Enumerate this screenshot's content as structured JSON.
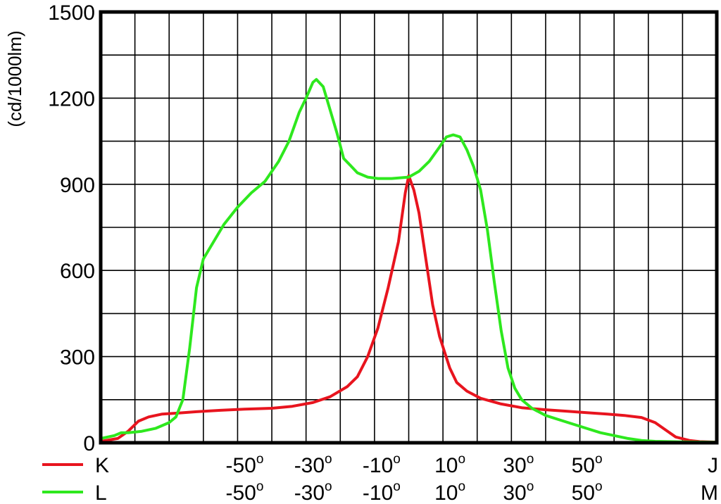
{
  "chart_data": {
    "type": "line",
    "ylabel": "(cd/1000lm)",
    "ylim": [
      0,
      1500
    ],
    "xlim": [
      -90,
      90
    ],
    "yticks": [
      "0",
      "300",
      "600",
      "900",
      "1200",
      "1500"
    ],
    "y_ticks_numeric": [
      0,
      300,
      600,
      900,
      1200,
      1500
    ],
    "grid": true,
    "x_axis_rows": [
      {
        "legend_label": "K",
        "color": "#e8141e",
        "tick_labels": [
          "-50",
          "-30",
          "-10",
          "10",
          "30",
          "50"
        ],
        "end_label": "J"
      },
      {
        "legend_label": "L",
        "color": "#2ee81e",
        "tick_labels": [
          "-50",
          "-30",
          "-10",
          "10",
          "30",
          "50"
        ],
        "end_label": "M"
      }
    ],
    "x_ticks_numeric": [
      -50,
      -30,
      -10,
      10,
      30,
      50
    ],
    "degree_symbol": "o",
    "series": [
      {
        "name": "K",
        "color": "#e8141e",
        "points": [
          [
            -90,
            5
          ],
          [
            -85,
            15
          ],
          [
            -82,
            40
          ],
          [
            -79,
            75
          ],
          [
            -76,
            90
          ],
          [
            -72,
            100
          ],
          [
            -68,
            103
          ],
          [
            -62,
            108
          ],
          [
            -55,
            113
          ],
          [
            -48,
            117
          ],
          [
            -40,
            120
          ],
          [
            -34,
            127
          ],
          [
            -28,
            140
          ],
          [
            -23,
            160
          ],
          [
            -18,
            195
          ],
          [
            -15,
            230
          ],
          [
            -12,
            300
          ],
          [
            -9,
            400
          ],
          [
            -6,
            540
          ],
          [
            -3,
            700
          ],
          [
            -1,
            870
          ],
          [
            0,
            930
          ],
          [
            1.5,
            880
          ],
          [
            3,
            800
          ],
          [
            5,
            640
          ],
          [
            7,
            480
          ],
          [
            9,
            370
          ],
          [
            12,
            260
          ],
          [
            14,
            210
          ],
          [
            17,
            180
          ],
          [
            21,
            155
          ],
          [
            27,
            135
          ],
          [
            33,
            122
          ],
          [
            40,
            115
          ],
          [
            46,
            110
          ],
          [
            52,
            105
          ],
          [
            58,
            100
          ],
          [
            63,
            95
          ],
          [
            68,
            88
          ],
          [
            72,
            70
          ],
          [
            75,
            45
          ],
          [
            78,
            20
          ],
          [
            82,
            8
          ],
          [
            85,
            4
          ],
          [
            90,
            2
          ]
        ]
      },
      {
        "name": "L",
        "color": "#2ee81e",
        "points": [
          [
            -90,
            15
          ],
          [
            -86,
            25
          ],
          [
            -84,
            35
          ],
          [
            -82,
            35
          ],
          [
            -78,
            40
          ],
          [
            -74,
            50
          ],
          [
            -70,
            70
          ],
          [
            -68,
            90
          ],
          [
            -66,
            150
          ],
          [
            -64,
            330
          ],
          [
            -62,
            540
          ],
          [
            -60,
            640
          ],
          [
            -57,
            700
          ],
          [
            -54,
            760
          ],
          [
            -50,
            820
          ],
          [
            -46,
            870
          ],
          [
            -42,
            910
          ],
          [
            -38,
            980
          ],
          [
            -35,
            1050
          ],
          [
            -32,
            1150
          ],
          [
            -30,
            1200
          ],
          [
            -28,
            1255
          ],
          [
            -27,
            1265
          ],
          [
            -25,
            1240
          ],
          [
            -23,
            1160
          ],
          [
            -21,
            1080
          ],
          [
            -19,
            990
          ],
          [
            -17,
            965
          ],
          [
            -15,
            940
          ],
          [
            -12,
            925
          ],
          [
            -9,
            920
          ],
          [
            -5,
            920
          ],
          [
            0,
            925
          ],
          [
            3,
            945
          ],
          [
            6,
            980
          ],
          [
            9,
            1030
          ],
          [
            11,
            1065
          ],
          [
            13,
            1072
          ],
          [
            15,
            1065
          ],
          [
            17,
            1020
          ],
          [
            19,
            960
          ],
          [
            21,
            880
          ],
          [
            23,
            740
          ],
          [
            25,
            560
          ],
          [
            27,
            390
          ],
          [
            29,
            260
          ],
          [
            31,
            190
          ],
          [
            33,
            150
          ],
          [
            36,
            120
          ],
          [
            40,
            95
          ],
          [
            44,
            80
          ],
          [
            48,
            65
          ],
          [
            52,
            50
          ],
          [
            56,
            35
          ],
          [
            60,
            25
          ],
          [
            64,
            15
          ],
          [
            68,
            8
          ],
          [
            72,
            5
          ],
          [
            80,
            3
          ],
          [
            90,
            2
          ]
        ]
      }
    ]
  }
}
